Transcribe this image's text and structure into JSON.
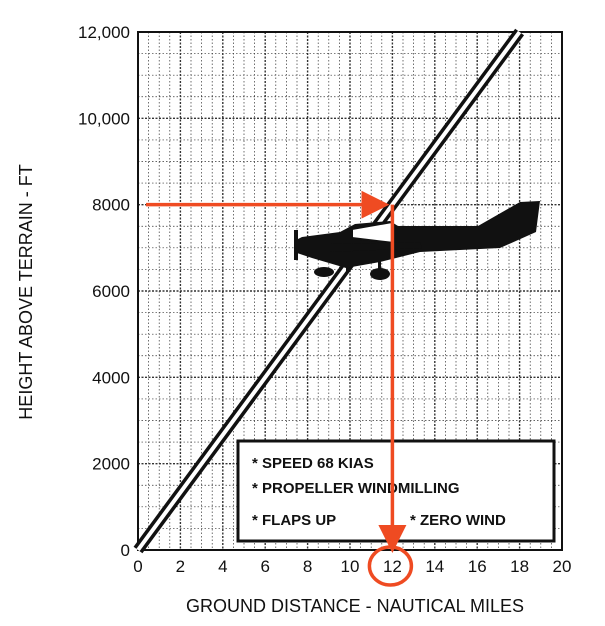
{
  "chart_data": {
    "type": "line",
    "xlabel": "GROUND DISTANCE - NAUTICAL MILES",
    "ylabel": "HEIGHT ABOVE TERRAIN - FT",
    "xlim": [
      0,
      20
    ],
    "ylim": [
      0,
      12000
    ],
    "x_ticks": [
      "0",
      "2",
      "4",
      "6",
      "8",
      "10",
      "12",
      "14",
      "16",
      "18",
      "20"
    ],
    "y_ticks": [
      "0",
      "2000",
      "4000",
      "6000",
      "8000",
      "10,000",
      "12,000"
    ],
    "grid": true,
    "series": [
      {
        "x": [
          0,
          18
        ],
        "y": [
          0,
          12000
        ]
      }
    ],
    "annotation": {
      "read_height": 8000,
      "read_distance": 12,
      "color": "#ef4b22"
    },
    "notes": [
      "* SPEED 68 KIAS",
      "* PROPELLER WINDMILLING",
      "* FLAPS UP",
      "* ZERO WIND"
    ]
  }
}
